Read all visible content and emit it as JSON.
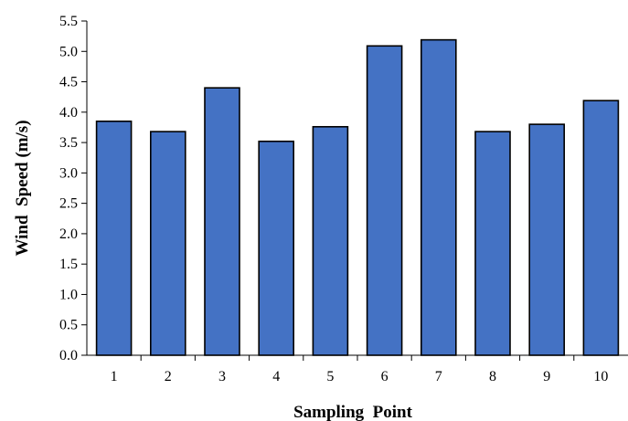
{
  "chart_data": {
    "type": "bar",
    "title": "",
    "xlabel": "Sampling  Point",
    "ylabel": "Wind  Speed (m/s)",
    "categories": [
      "1",
      "2",
      "3",
      "4",
      "5",
      "6",
      "7",
      "8",
      "9",
      "10"
    ],
    "values": [
      3.85,
      3.68,
      4.4,
      3.52,
      3.76,
      5.09,
      5.19,
      3.68,
      3.8,
      4.19
    ],
    "ylim": [
      0,
      5.5
    ],
    "yticks": [
      "0.0",
      "0.5",
      "1.0",
      "1.5",
      "2.0",
      "2.5",
      "3.0",
      "3.5",
      "4.0",
      "4.5",
      "5.0",
      "5.5"
    ],
    "grid": false,
    "legend": "none",
    "colors": {
      "bar": "#4472c4",
      "outline": "#000000"
    }
  }
}
